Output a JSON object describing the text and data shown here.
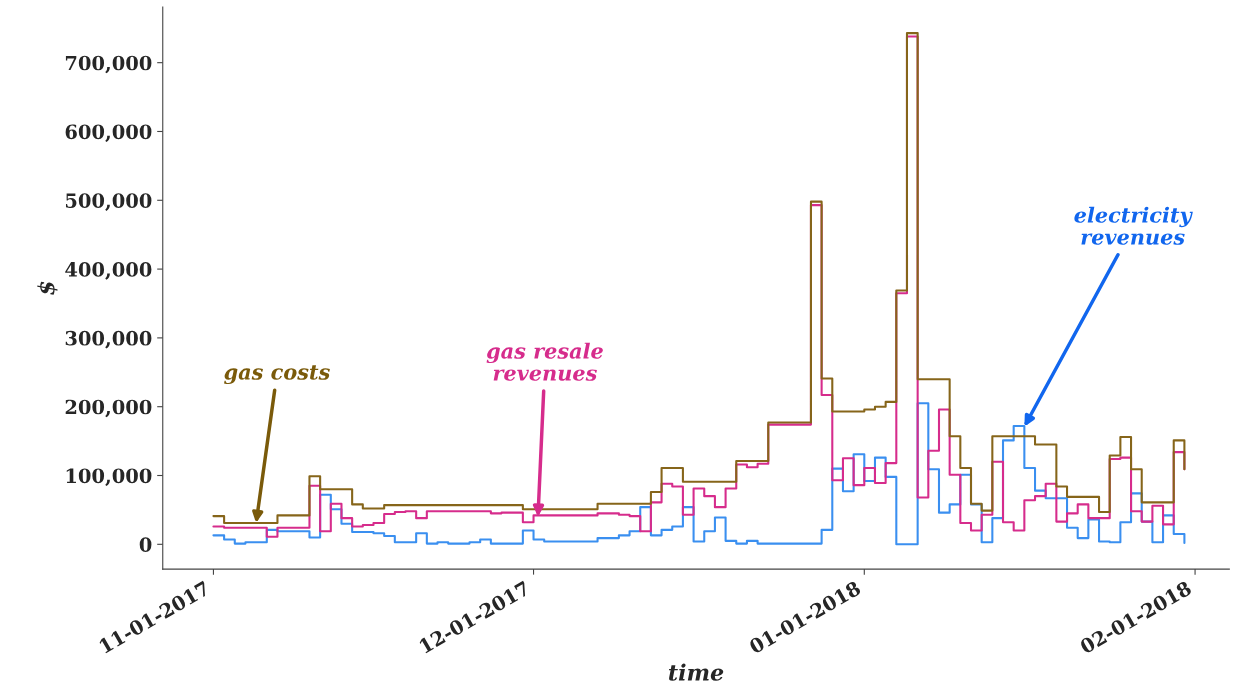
{
  "chart_data": {
    "type": "step",
    "xlabel": "time",
    "ylabel": "$",
    "xlim": [
      "2017-10-27T06:00",
      "2018-02-04T05:00"
    ],
    "xticks": [
      {
        "value": "2017-11-01",
        "label": "11-01-2017"
      },
      {
        "value": "2017-12-01",
        "label": "12-01-2017"
      },
      {
        "value": "2018-01-01",
        "label": "01-01-2018"
      },
      {
        "value": "2018-02-01",
        "label": "02-01-2018"
      }
    ],
    "ylim": [
      -36000,
      781000
    ],
    "yticks": [
      {
        "value": 0,
        "label": "0"
      },
      {
        "value": 100000,
        "label": "100,000"
      },
      {
        "value": 200000,
        "label": "200,000"
      },
      {
        "value": 300000,
        "label": "300,000"
      },
      {
        "value": 400000,
        "label": "400,000"
      },
      {
        "value": 500000,
        "label": "500,000"
      },
      {
        "value": 600000,
        "label": "600,000"
      },
      {
        "value": 700000,
        "label": "700,000"
      }
    ],
    "grid": false,
    "legend": false,
    "series": [
      {
        "color": "#3a8ff0",
        "x": [
          "2017-11-01",
          "2017-11-02",
          "2017-11-03",
          "2017-11-04",
          "2017-11-06",
          "2017-11-07",
          "2017-11-10",
          "2017-11-11",
          "2017-11-12",
          "2017-11-13",
          "2017-11-14",
          "2017-11-16",
          "2017-11-17",
          "2017-11-18",
          "2017-11-20",
          "2017-11-21",
          "2017-11-22",
          "2017-11-23",
          "2017-11-25",
          "2017-11-26",
          "2017-11-27",
          "2017-11-30",
          "2017-12-01",
          "2017-12-02",
          "2017-12-07",
          "2017-12-09",
          "2017-12-10",
          "2017-12-11",
          "2017-12-12",
          "2017-12-13",
          "2017-12-14",
          "2017-12-15",
          "2017-12-16",
          "2017-12-17",
          "2017-12-18",
          "2017-12-19",
          "2017-12-20",
          "2017-12-21",
          "2017-12-22",
          "2017-12-28",
          "2017-12-29",
          "2017-12-30",
          "2017-12-31",
          "2018-01-01",
          "2018-01-02",
          "2018-01-03",
          "2018-01-04",
          "2018-01-06",
          "2018-01-07",
          "2018-01-08",
          "2018-01-09",
          "2018-01-10",
          "2018-01-11",
          "2018-01-12",
          "2018-01-13",
          "2018-01-14",
          "2018-01-15",
          "2018-01-16",
          "2018-01-17",
          "2018-01-18",
          "2018-01-20",
          "2018-01-21",
          "2018-01-22",
          "2018-01-23",
          "2018-01-24",
          "2018-01-25",
          "2018-01-26",
          "2018-01-27",
          "2018-01-28",
          "2018-01-29",
          "2018-01-30",
          "2018-01-31"
        ],
        "values": [
          13000,
          7000,
          1000,
          3000,
          21000,
          19000,
          10000,
          72000,
          51000,
          30000,
          18000,
          16000,
          12000,
          3000,
          16000,
          1000,
          3000,
          1000,
          3000,
          7000,
          1000,
          20000,
          7000,
          4000,
          9000,
          13000,
          19000,
          54000,
          13000,
          21000,
          26000,
          54000,
          4000,
          19000,
          39000,
          5000,
          1000,
          5000,
          1000,
          21000,
          110000,
          77000,
          131000,
          92000,
          126000,
          98000,
          0,
          205000,
          109000,
          46000,
          58000,
          101000,
          58000,
          3000,
          38000,
          151000,
          172000,
          111000,
          78000,
          67000,
          24000,
          9000,
          36000,
          4000,
          3000,
          32000,
          74000,
          33000,
          3000,
          42000,
          15000,
          2000
        ]
      },
      {
        "color": "#d62c8c",
        "x": [
          "2017-11-01",
          "2017-11-02",
          "2017-11-06",
          "2017-11-07",
          "2017-11-10",
          "2017-11-11",
          "2017-11-12",
          "2017-11-13",
          "2017-11-14",
          "2017-11-15",
          "2017-11-16",
          "2017-11-17",
          "2017-11-18",
          "2017-11-19",
          "2017-11-20",
          "2017-11-21",
          "2017-11-27",
          "2017-11-28",
          "2017-11-30",
          "2017-12-01",
          "2017-12-07",
          "2017-12-09",
          "2017-12-10",
          "2017-12-11",
          "2017-12-12",
          "2017-12-13",
          "2017-12-14",
          "2017-12-15",
          "2017-12-16",
          "2017-12-17",
          "2017-12-18",
          "2017-12-19",
          "2017-12-20",
          "2017-12-21",
          "2017-12-22",
          "2017-12-23",
          "2017-12-27",
          "2017-12-28",
          "2017-12-29",
          "2017-12-30",
          "2017-12-31",
          "2018-01-01",
          "2018-01-02",
          "2018-01-03",
          "2018-01-04",
          "2018-01-05",
          "2018-01-06",
          "2018-01-07",
          "2018-01-08",
          "2018-01-09",
          "2018-01-10",
          "2018-01-11",
          "2018-01-12",
          "2018-01-13",
          "2018-01-14",
          "2018-01-15",
          "2018-01-16",
          "2018-01-17",
          "2018-01-18",
          "2018-01-19",
          "2018-01-20",
          "2018-01-21",
          "2018-01-22",
          "2018-01-24",
          "2018-01-25",
          "2018-01-26",
          "2018-01-27",
          "2018-01-28",
          "2018-01-29",
          "2018-01-30",
          "2018-01-31"
        ],
        "values": [
          26000,
          24000,
          11000,
          24000,
          85000,
          19000,
          59000,
          38000,
          26000,
          28000,
          31000,
          44000,
          47000,
          48000,
          38000,
          48000,
          45000,
          46000,
          32000,
          42000,
          45000,
          43000,
          41000,
          19000,
          61000,
          88000,
          84000,
          43000,
          81000,
          70000,
          54000,
          81000,
          116000,
          112000,
          117000,
          174000,
          493000,
          217000,
          93000,
          125000,
          86000,
          111000,
          89000,
          118000,
          365000,
          738000,
          68000,
          136000,
          196000,
          101000,
          31000,
          20000,
          43000,
          120000,
          32000,
          20000,
          64000,
          70000,
          88000,
          33000,
          45000,
          58000,
          38000,
          124000,
          126000,
          48000,
          33000,
          56000,
          29000,
          134000,
          109000
        ]
      },
      {
        "color": "#86651a",
        "x": [
          "2017-11-01",
          "2017-11-02",
          "2017-11-07",
          "2017-11-10",
          "2017-11-11",
          "2017-11-14",
          "2017-11-15",
          "2017-11-17",
          "2017-11-30",
          "2017-12-07",
          "2017-12-12",
          "2017-12-13",
          "2017-12-15",
          "2017-12-20",
          "2017-12-23",
          "2017-12-27",
          "2017-12-28",
          "2017-12-29",
          "2018-01-01",
          "2018-01-02",
          "2018-01-03",
          "2018-01-04",
          "2018-01-05",
          "2018-01-06",
          "2018-01-09",
          "2018-01-10",
          "2018-01-11",
          "2018-01-12",
          "2018-01-13",
          "2018-01-17",
          "2018-01-19",
          "2018-01-20",
          "2018-01-23",
          "2018-01-24",
          "2018-01-25",
          "2018-01-26",
          "2018-01-27",
          "2018-01-30",
          "2018-01-31"
        ],
        "values": [
          41000,
          31000,
          42000,
          99000,
          80000,
          58000,
          52000,
          57000,
          51000,
          59000,
          76000,
          111000,
          91000,
          121000,
          177000,
          498000,
          241000,
          193000,
          196000,
          200000,
          207000,
          369000,
          743000,
          240000,
          157000,
          111000,
          59000,
          49000,
          157000,
          145000,
          84000,
          69000,
          47000,
          129000,
          156000,
          109000,
          61000,
          151000,
          109000
        ]
      }
    ],
    "annotations": [
      {
        "text": "gas costs",
        "x": "2017-11-05",
        "y": 31000
      },
      {
        "text": "gas resale\nrevenues",
        "x": "2017-12-01T10:00",
        "y": 40000
      },
      {
        "text": "electricity\nrevenues",
        "x": "2018-01-16",
        "y": 171000
      }
    ]
  }
}
